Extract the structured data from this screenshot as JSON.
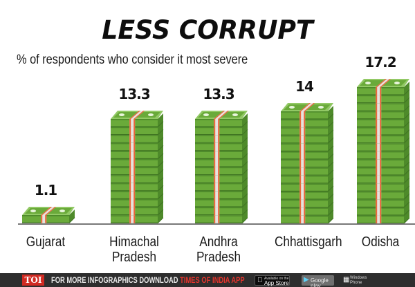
{
  "title": "LESS CORRUPT",
  "subtitle": "% of respondents who consider it most severe",
  "colors": {
    "bill_green": "#6aaa3a",
    "bill_dark": "#4e8a2a",
    "bill_light": "#92c965",
    "band_white": "#e6e3df",
    "band_orange": "#e8663a",
    "baseline": "#777777",
    "footer_bg": "#2e2e2e",
    "toi_red": "#d12a22"
  },
  "chart_data": {
    "type": "bar",
    "title": "LESS CORRUPT",
    "subtitle": "% of respondents who consider it most severe",
    "xlabel": "",
    "ylabel": "% of respondents",
    "categories": [
      "Gujarat",
      "Himachal Pradesh",
      "Andhra Pradesh",
      "Chhattisgarh",
      "Odisha"
    ],
    "values": [
      1.1,
      13.3,
      13.3,
      14,
      17.2
    ],
    "value_labels": [
      "1.1",
      "13.3",
      "13.3",
      "14",
      "17.2"
    ],
    "grid": false,
    "legend": null,
    "style": "pictograph stacks of banknotes"
  },
  "bars": [
    {
      "label_line1": "Gujarat",
      "label_line2": "",
      "value": "1.1",
      "layers": 1
    },
    {
      "label_line1": "Himachal",
      "label_line2": "Pradesh",
      "value": "13.3",
      "layers": 13
    },
    {
      "label_line1": "Andhra",
      "label_line2": "Pradesh",
      "value": "13.3",
      "layers": 13
    },
    {
      "label_line1": "Chhattisgarh",
      "label_line2": "",
      "value": "14",
      "layers": 14
    },
    {
      "label_line1": "Odisha",
      "label_line2": "",
      "value": "17.2",
      "layers": 17
    }
  ],
  "footer": {
    "brand": "TOI",
    "text_white": "FOR MORE  INFOGRAPHICS DOWNLOAD ",
    "text_red": "TIMES OF INDIA  APP",
    "appstore_small": "Available on the",
    "appstore_big": "App Store",
    "googleplay": "Google play",
    "winphone_line1": "Windows",
    "winphone_line2": "Phone"
  }
}
